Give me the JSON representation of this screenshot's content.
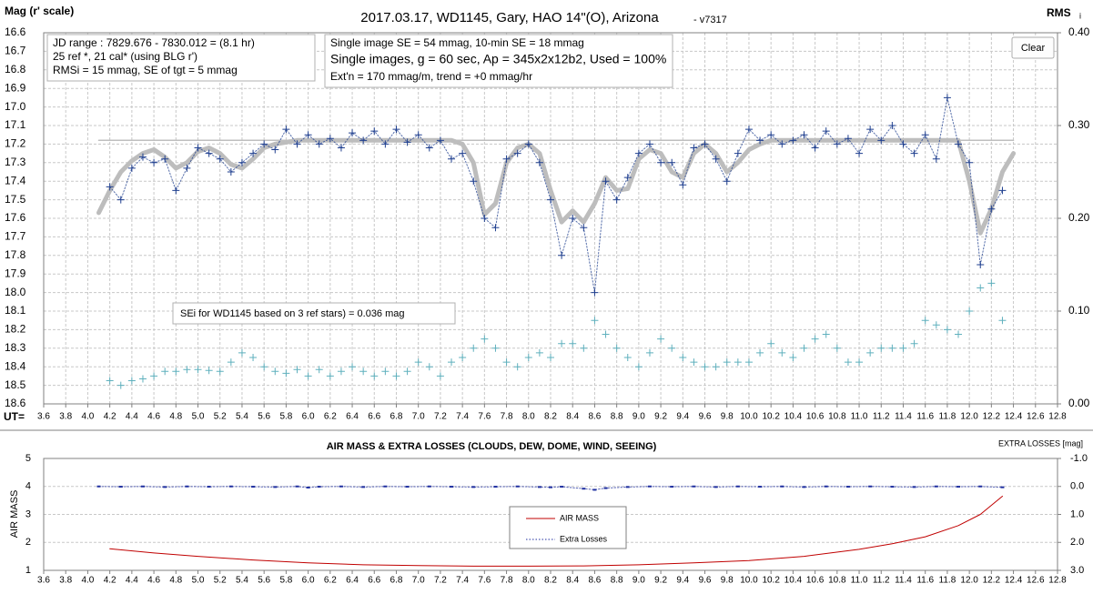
{
  "chart_data": [
    {
      "type": "line",
      "title": "2017.03.17,  WD1145, Gary, HAO  14\"(O), Arizona",
      "version": "- v7317",
      "y_label": "Mag (r' scale)",
      "y2_label": "RMS",
      "y2_label_sub": "i",
      "x_prefix": "UT=",
      "info_left": [
        "JD range  : 7829.676 - 7830.012  = (8.1 hr)",
        "25 ref *, 21 cal* (using BLG r')",
        "RMSi = 15 mmag, SE of tgt = 5 mmag"
      ],
      "info_right": [
        "Single image SE = 54 mmag, 10-min SE = 18 mmag",
        "Single images, g = 60 sec, Ap = 345x2x12b2, Used = 100%",
        "Ext'n = 170 mmag/m, trend = +0 mmag/hr"
      ],
      "note": "SEi for WD1145 based on 3 ref stars) = 0.036 mag",
      "button": "Clear",
      "xlim": [
        3.6,
        12.8
      ],
      "ylim": [
        16.6,
        18.6
      ],
      "y_inverted": true,
      "y2lim": [
        0,
        0.4
      ],
      "y2_inverted": false,
      "xgrid": true,
      "ygrid": true,
      "xticks": [
        3.6,
        3.8,
        {
          "value": 4,
          "label": "4.0"
        },
        4.2,
        4.4,
        4.6,
        4.8,
        {
          "value": 5,
          "label": "5.0"
        },
        5.2,
        5.4,
        5.6,
        5.8,
        {
          "value": 6,
          "label": "6.0"
        },
        6.2,
        6.4,
        6.6,
        6.8,
        {
          "value": 7,
          "label": "7.0"
        },
        7.2,
        7.4,
        7.6,
        7.8,
        {
          "value": 8,
          "label": "8.0"
        },
        8.2,
        8.4,
        8.6,
        8.8,
        {
          "value": 9,
          "label": "9.0"
        },
        9.2,
        9.4,
        9.6,
        9.8,
        {
          "value": 10,
          "label": "10.0"
        },
        10.2,
        10.4,
        10.6,
        10.8,
        {
          "value": 11,
          "label": "11.0"
        },
        11.2,
        11.4,
        11.6,
        11.8,
        {
          "value": 12,
          "label": "12.0"
        },
        12.2,
        12.4,
        12.6,
        12.8
      ],
      "yticks": [
        16.6,
        16.7,
        16.8,
        16.9,
        {
          "value": 17,
          "label": "17.0"
        },
        17.1,
        17.2,
        17.3,
        17.4,
        17.5,
        17.6,
        17.7,
        17.8,
        17.9,
        {
          "value": 18,
          "label": "18.0"
        },
        18.1,
        18.2,
        18.3,
        18.4,
        18.5,
        18.6
      ],
      "y2ticks": [
        {
          "value": 0,
          "label": "0.00"
        },
        {
          "value": 0.1,
          "label": "0.10"
        },
        {
          "value": 0.2,
          "label": "0.20"
        },
        {
          "value": 0.3,
          "label": "0.30"
        },
        {
          "value": 0.4,
          "label": "0.40"
        }
      ],
      "x": [
        4.1,
        4.2,
        4.3,
        4.4,
        4.5,
        4.6,
        4.7,
        4.8,
        4.9,
        5.0,
        5.1,
        5.2,
        5.3,
        5.4,
        5.5,
        5.6,
        5.7,
        5.8,
        5.9,
        6.0,
        6.1,
        6.2,
        6.3,
        6.4,
        6.5,
        6.6,
        6.7,
        6.8,
        6.9,
        7.0,
        7.1,
        7.2,
        7.3,
        7.4,
        7.5,
        7.6,
        7.7,
        7.8,
        7.9,
        8.0,
        8.1,
        8.2,
        8.3,
        8.4,
        8.5,
        8.6,
        8.7,
        8.8,
        8.9,
        9.0,
        9.1,
        9.2,
        9.3,
        9.4,
        9.5,
        9.6,
        9.7,
        9.8,
        9.9,
        10.0,
        10.1,
        10.2,
        10.3,
        10.4,
        10.5,
        10.6,
        10.7,
        10.8,
        10.9,
        11.0,
        11.1,
        11.2,
        11.3,
        11.4,
        11.5,
        11.6,
        11.7,
        11.8,
        11.9,
        12.0,
        12.1,
        12.2,
        12.3,
        12.4
      ],
      "series": [
        {
          "color": "#bfbfbf",
          "line": "solid",
          "width": 1.5,
          "x": [
            4.1,
            12.4
          ],
          "values": [
            17.18,
            17.18
          ]
        },
        {
          "color": "#bdbdbd",
          "line": "solid",
          "width": 5,
          "values": [
            17.57,
            17.45,
            17.35,
            17.29,
            17.25,
            17.23,
            17.27,
            17.33,
            17.3,
            17.24,
            17.22,
            17.25,
            17.31,
            17.33,
            17.28,
            17.22,
            17.2,
            17.19,
            17.18,
            17.18,
            17.18,
            17.18,
            17.18,
            17.18,
            17.18,
            17.18,
            17.18,
            17.18,
            17.18,
            17.18,
            17.18,
            17.18,
            17.18,
            17.2,
            17.3,
            17.58,
            17.52,
            17.3,
            17.22,
            17.2,
            17.25,
            17.45,
            17.62,
            17.56,
            17.62,
            17.52,
            17.38,
            17.45,
            17.44,
            17.28,
            17.23,
            17.25,
            17.35,
            17.38,
            17.25,
            17.2,
            17.25,
            17.35,
            17.3,
            17.23,
            17.2,
            17.18,
            17.18,
            17.18,
            17.18,
            17.18,
            17.18,
            17.18,
            17.18,
            17.18,
            17.18,
            17.18,
            17.18,
            17.18,
            17.18,
            17.18,
            17.18,
            17.18,
            17.18,
            17.4,
            17.68,
            17.55,
            17.35,
            17.25
          ]
        },
        {
          "color": "#1f3f8f",
          "line": "dotted",
          "width": 1,
          "marker": "plus",
          "values": [
            null,
            17.43,
            17.5,
            17.33,
            17.27,
            17.3,
            17.28,
            17.45,
            17.33,
            17.22,
            17.25,
            17.28,
            17.35,
            17.3,
            17.25,
            17.2,
            17.23,
            17.12,
            17.2,
            17.15,
            17.2,
            17.17,
            17.22,
            17.14,
            17.18,
            17.13,
            17.2,
            17.12,
            17.19,
            17.15,
            17.22,
            17.18,
            17.28,
            17.25,
            17.4,
            17.6,
            17.65,
            17.28,
            17.25,
            17.2,
            17.3,
            17.5,
            17.8,
            17.6,
            17.65,
            18.0,
            17.4,
            17.5,
            17.38,
            17.25,
            17.2,
            17.3,
            17.3,
            17.42,
            17.22,
            17.2,
            17.28,
            17.4,
            17.25,
            17.12,
            17.18,
            17.15,
            17.2,
            17.18,
            17.15,
            17.22,
            17.13,
            17.2,
            17.17,
            17.25,
            17.12,
            17.18,
            17.1,
            17.2,
            17.25,
            17.15,
            17.28,
            16.95,
            17.2,
            17.3,
            17.85,
            17.55,
            17.45,
            null
          ]
        },
        {
          "color": "#5fb0bd",
          "axis": "y2",
          "marker": "plus",
          "values": [
            null,
            0.025,
            0.02,
            0.025,
            0.027,
            0.03,
            0.035,
            0.035,
            0.037,
            0.037,
            0.036,
            0.035,
            0.045,
            0.055,
            0.05,
            0.04,
            0.035,
            0.033,
            0.037,
            0.03,
            0.037,
            0.03,
            0.035,
            0.04,
            0.035,
            0.03,
            0.035,
            0.03,
            0.035,
            0.045,
            0.04,
            0.03,
            0.045,
            0.05,
            0.06,
            0.07,
            0.06,
            0.045,
            0.04,
            0.05,
            0.055,
            0.05,
            0.065,
            0.065,
            0.06,
            0.09,
            0.075,
            0.06,
            0.05,
            0.04,
            0.055,
            0.07,
            0.06,
            0.05,
            0.045,
            0.04,
            0.04,
            0.045,
            0.045,
            0.045,
            0.055,
            0.065,
            0.055,
            0.05,
            0.06,
            0.07,
            0.075,
            0.06,
            0.045,
            0.045,
            0.055,
            0.06,
            0.06,
            0.06,
            0.065,
            0.09,
            0.085,
            0.08,
            0.075,
            0.1,
            0.125,
            0.13,
            0.09,
            null
          ]
        }
      ]
    },
    {
      "type": "line",
      "title": "AIR MASS & EXTRA LOSSES (CLOUDS, DEW, DOME, WIND, SEEING)",
      "y_label": "AIR MASS",
      "y2_label": "EXTRA LOSSES [mag]",
      "xlim": [
        3.6,
        12.8
      ],
      "ylim": [
        1,
        5
      ],
      "y_inverted": false,
      "y2lim": [
        -1,
        3
      ],
      "y2_inverted": true,
      "xgrid": false,
      "ygrid": true,
      "xticks": [
        3.6,
        3.8,
        {
          "value": 4,
          "label": "4.0"
        },
        4.2,
        4.4,
        4.6,
        4.8,
        {
          "value": 5,
          "label": "5.0"
        },
        5.2,
        5.4,
        5.6,
        5.8,
        {
          "value": 6,
          "label": "6.0"
        },
        6.2,
        6.4,
        6.6,
        6.8,
        {
          "value": 7,
          "label": "7.0"
        },
        7.2,
        7.4,
        7.6,
        7.8,
        {
          "value": 8,
          "label": "8.0"
        },
        8.2,
        8.4,
        8.6,
        8.8,
        {
          "value": 9,
          "label": "9.0"
        },
        9.2,
        9.4,
        9.6,
        9.8,
        {
          "value": 10,
          "label": "10.0"
        },
        10.2,
        10.4,
        10.6,
        10.8,
        {
          "value": 11,
          "label": "11.0"
        },
        11.2,
        11.4,
        11.6,
        11.8,
        {
          "value": 12,
          "label": "12.0"
        },
        12.2,
        12.4,
        12.6,
        12.8
      ],
      "yticks": [
        1,
        2,
        3,
        4,
        5
      ],
      "y2ticks": [
        {
          "value": -1,
          "label": "-1.0"
        },
        {
          "value": 0,
          "label": "0.0"
        },
        {
          "value": 1,
          "label": "1.0"
        },
        {
          "value": 2,
          "label": "2.0"
        },
        {
          "value": 3,
          "label": "3.0"
        }
      ],
      "series": [
        {
          "name": "AIR MASS",
          "color": "#c00000",
          "line": "solid",
          "width": 1,
          "x": [
            4.2,
            4.6,
            5.0,
            5.5,
            6.0,
            6.5,
            7.0,
            7.5,
            8.0,
            8.5,
            9.0,
            9.5,
            10.0,
            10.5,
            11.0,
            11.3,
            11.6,
            11.9,
            12.1,
            12.3
          ],
          "values": [
            1.77,
            1.62,
            1.5,
            1.37,
            1.27,
            1.2,
            1.17,
            1.15,
            1.15,
            1.16,
            1.2,
            1.27,
            1.35,
            1.5,
            1.75,
            1.95,
            2.2,
            2.6,
            3.0,
            3.65
          ]
        },
        {
          "name": "Extra Losses",
          "color": "#1f2fa0",
          "axis": "y2",
          "line": "dotted",
          "width": 1,
          "marker": "dash",
          "x": [
            4.1,
            4.3,
            4.5,
            4.7,
            4.9,
            5.1,
            5.3,
            5.5,
            5.7,
            5.9,
            6.0,
            6.1,
            6.3,
            6.5,
            6.7,
            6.9,
            7.1,
            7.3,
            7.5,
            7.7,
            7.9,
            8.1,
            8.2,
            8.3,
            8.5,
            8.6,
            8.7,
            8.9,
            9.1,
            9.3,
            9.5,
            9.7,
            9.9,
            10.1,
            10.3,
            10.5,
            10.7,
            10.9,
            11.1,
            11.3,
            11.5,
            11.7,
            11.9,
            12.1,
            12.3
          ],
          "values": [
            0.0,
            0.01,
            0.0,
            0.02,
            0.0,
            0.01,
            0.0,
            0.01,
            0.02,
            0.0,
            0.04,
            0.01,
            0.0,
            0.02,
            0.0,
            0.01,
            0.0,
            0.01,
            0.02,
            0.01,
            0.0,
            0.02,
            0.03,
            0.01,
            0.08,
            0.12,
            0.06,
            0.02,
            0.0,
            0.01,
            0.0,
            0.02,
            0.0,
            0.01,
            0.0,
            0.02,
            0.0,
            0.01,
            0.0,
            0.01,
            0.02,
            0.0,
            0.01,
            0.0,
            0.03
          ]
        }
      ]
    }
  ]
}
